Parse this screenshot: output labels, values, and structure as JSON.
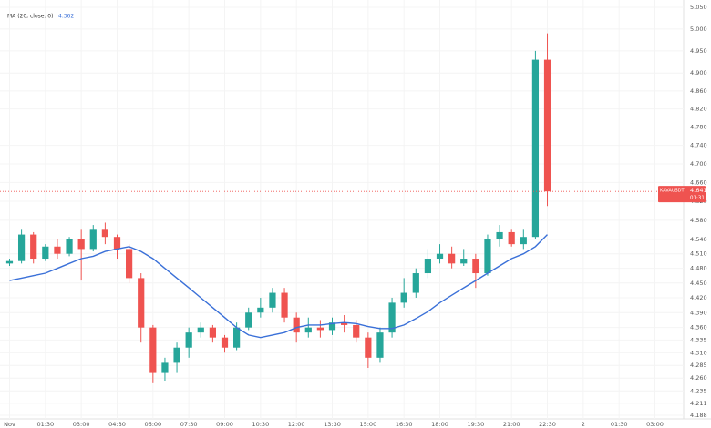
{
  "chart_data": {
    "type": "candlestick",
    "log_scale": true,
    "grid": true,
    "up_color": "#26a69a",
    "down_color": "#ef5350",
    "xlim": [
      -0.4,
      28.2
    ],
    "ylim": [
      4.181,
      5.067
    ],
    "xticks": [
      {
        "value": 0,
        "label": "Nov"
      },
      {
        "value": 1.5,
        "label": "01:30"
      },
      {
        "value": 3,
        "label": "03:00"
      },
      {
        "value": 4.5,
        "label": "04:30"
      },
      {
        "value": 6,
        "label": "06:00"
      },
      {
        "value": 7.5,
        "label": "07:30"
      },
      {
        "value": 9,
        "label": "09:00"
      },
      {
        "value": 10.5,
        "label": "10:30"
      },
      {
        "value": 12,
        "label": "12:00"
      },
      {
        "value": 13.5,
        "label": "13:30"
      },
      {
        "value": 15,
        "label": "15:00"
      },
      {
        "value": 16.5,
        "label": "16:30"
      },
      {
        "value": 18,
        "label": "18:00"
      },
      {
        "value": 19.5,
        "label": "19:30"
      },
      {
        "value": 21,
        "label": "21:00"
      },
      {
        "value": 22.5,
        "label": "22:30"
      },
      {
        "value": 24,
        "label": "2"
      },
      {
        "value": 25.5,
        "label": "01:30"
      },
      {
        "value": 27,
        "label": "03:00"
      }
    ],
    "yticks": [
      {
        "value": 5.05,
        "label": "5.050"
      },
      {
        "value": 5.0,
        "label": "5.000"
      },
      {
        "value": 4.95,
        "label": "4.950"
      },
      {
        "value": 4.9,
        "label": "4.900"
      },
      {
        "value": 4.86,
        "label": "4.860"
      },
      {
        "value": 4.82,
        "label": "4.820"
      },
      {
        "value": 4.78,
        "label": "4.780"
      },
      {
        "value": 4.74,
        "label": "4.740"
      },
      {
        "value": 4.7,
        "label": "4.700"
      },
      {
        "value": 4.66,
        "label": "4.660"
      },
      {
        "value": 4.62,
        "label": "4.620"
      },
      {
        "value": 4.58,
        "label": "4.580"
      },
      {
        "value": 4.54,
        "label": "4.540"
      },
      {
        "value": 4.51,
        "label": "4.510"
      },
      {
        "value": 4.48,
        "label": "4.480"
      },
      {
        "value": 4.45,
        "label": "4.450"
      },
      {
        "value": 4.42,
        "label": "4.420"
      },
      {
        "value": 4.39,
        "label": "4.390"
      },
      {
        "value": 4.36,
        "label": "4.360"
      },
      4.335,
      {
        "value": 4.31,
        "label": "4.310"
      },
      4.285,
      {
        "value": 4.26,
        "label": "4.260"
      },
      4.235,
      4.211,
      4.188
    ],
    "x": [
      0,
      0.5,
      1,
      1.5,
      2,
      2.5,
      3,
      3.5,
      4,
      4.5,
      5,
      5.5,
      6,
      6.5,
      7,
      7.5,
      8,
      8.5,
      9,
      9.5,
      10,
      10.5,
      11,
      11.5,
      12,
      12.5,
      13,
      13.5,
      14,
      14.5,
      15,
      15.5,
      16,
      16.5,
      17,
      17.5,
      18,
      18.5,
      19,
      19.5,
      20,
      20.5,
      21,
      21.5,
      22,
      22.5
    ],
    "open": [
      4.49,
      4.495,
      4.55,
      4.5,
      4.525,
      4.51,
      4.54,
      4.52,
      4.56,
      4.545,
      4.52,
      4.46,
      4.36,
      4.27,
      4.29,
      4.32,
      4.35,
      4.36,
      4.34,
      4.32,
      4.36,
      4.39,
      4.4,
      4.43,
      4.38,
      4.35,
      4.36,
      4.355,
      4.37,
      4.365,
      4.34,
      4.3,
      4.35,
      4.41,
      4.43,
      4.47,
      4.5,
      4.51,
      4.49,
      4.5,
      4.47,
      4.54,
      4.555,
      4.53,
      4.545,
      4.93
    ],
    "high": [
      4.5,
      4.56,
      4.555,
      4.53,
      4.54,
      4.545,
      4.56,
      4.57,
      4.575,
      4.55,
      4.53,
      4.47,
      4.365,
      4.3,
      4.33,
      4.36,
      4.37,
      4.365,
      4.345,
      4.37,
      4.4,
      4.42,
      4.44,
      4.44,
      4.39,
      4.38,
      4.375,
      4.38,
      4.385,
      4.375,
      4.35,
      4.36,
      4.42,
      4.46,
      4.48,
      4.52,
      4.53,
      4.525,
      4.52,
      4.51,
      4.55,
      4.57,
      4.56,
      4.56,
      4.95,
      4.99
    ],
    "low": [
      4.485,
      4.49,
      4.49,
      4.495,
      4.5,
      4.505,
      4.455,
      4.515,
      4.53,
      4.5,
      4.45,
      4.33,
      4.25,
      4.255,
      4.27,
      4.3,
      4.34,
      4.33,
      4.31,
      4.315,
      4.355,
      4.38,
      4.39,
      4.37,
      4.33,
      4.34,
      4.34,
      4.345,
      4.35,
      4.33,
      4.28,
      4.29,
      4.34,
      4.4,
      4.42,
      4.46,
      4.49,
      4.48,
      4.485,
      4.44,
      4.465,
      4.525,
      4.525,
      4.52,
      4.54,
      4.61
    ],
    "close": [
      4.495,
      4.55,
      4.5,
      4.525,
      4.51,
      4.54,
      4.52,
      4.56,
      4.545,
      4.52,
      4.46,
      4.36,
      4.27,
      4.29,
      4.32,
      4.35,
      4.36,
      4.34,
      4.32,
      4.36,
      4.39,
      4.4,
      4.43,
      4.38,
      4.35,
      4.36,
      4.355,
      4.37,
      4.365,
      4.34,
      4.3,
      4.35,
      4.41,
      4.43,
      4.47,
      4.5,
      4.51,
      4.49,
      4.5,
      4.47,
      4.54,
      4.555,
      4.53,
      4.545,
      4.93,
      4.641
    ],
    "ma": {
      "name": "MA (20, close, 0)",
      "color": "#3a70d8",
      "legend_value": 4.362,
      "values": [
        4.455,
        4.46,
        4.465,
        4.47,
        4.48,
        4.49,
        4.5,
        4.505,
        4.515,
        4.52,
        4.525,
        4.515,
        4.5,
        4.48,
        4.46,
        4.44,
        4.42,
        4.4,
        4.38,
        4.36,
        4.345,
        4.34,
        4.345,
        4.35,
        4.36,
        4.365,
        4.365,
        4.368,
        4.37,
        4.368,
        4.362,
        4.358,
        4.358,
        4.365,
        4.378,
        4.392,
        4.41,
        4.425,
        4.44,
        4.455,
        4.47,
        4.485,
        4.5,
        4.51,
        4.525,
        4.55
      ]
    },
    "last_price": {
      "symbol": "KAVAUSDT",
      "value": 4.641,
      "countdown": "01:31"
    }
  }
}
